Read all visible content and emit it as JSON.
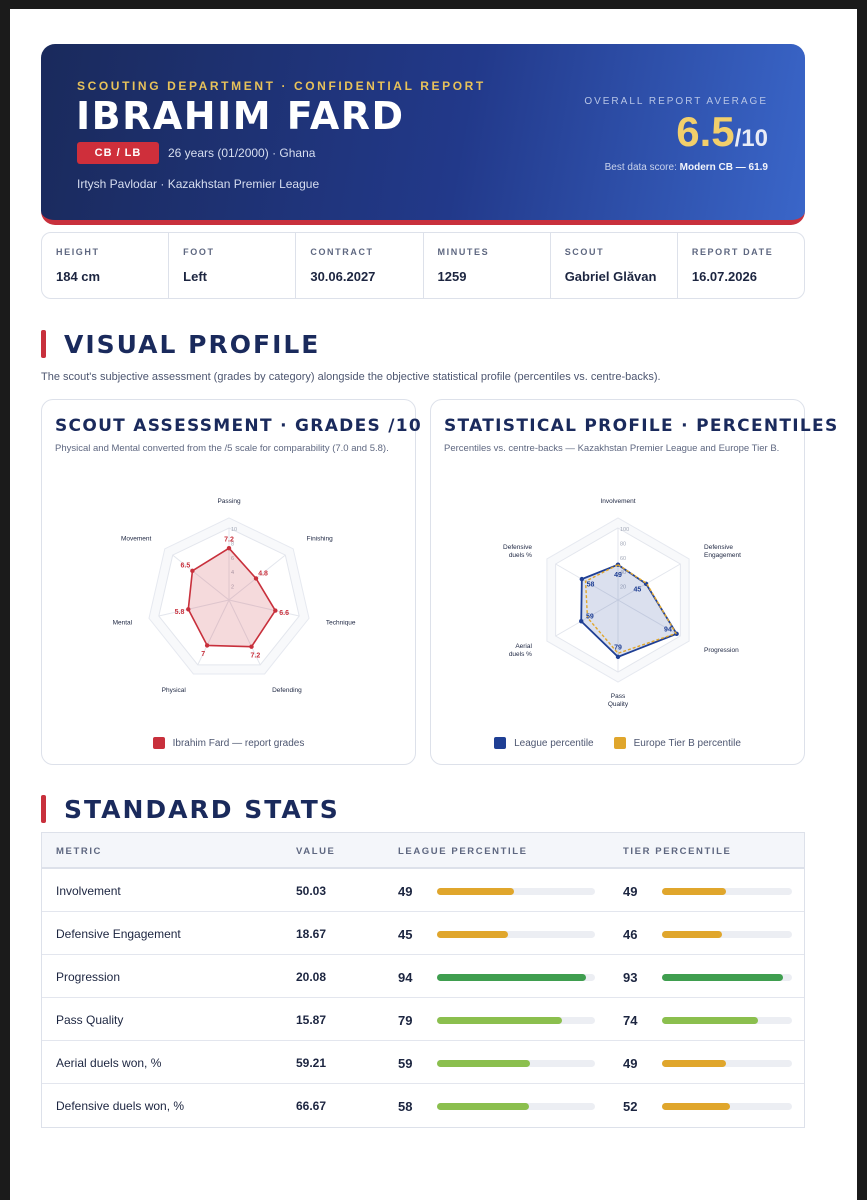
{
  "header": {
    "department": "SCOUTING DEPARTMENT · CONFIDENTIAL REPORT",
    "player_name": "IBRAHIM FARD",
    "position_badge": "CB / LB",
    "age_line": "26 years (01/2000) · Ghana",
    "club_line": "Irtysh Pavlodar · Kazakhstan Premier League",
    "overall_label": "OVERALL REPORT AVERAGE",
    "overall_score": "6.5",
    "overall_denominator": "/10",
    "best_label": "Best data score:",
    "best_value": "Modern CB — 61.9",
    "accent_color": "#c8303c",
    "gold_color": "#f2cf6b"
  },
  "info": [
    {
      "label": "HEIGHT",
      "value": "184 cm"
    },
    {
      "label": "FOOT",
      "value": "Left"
    },
    {
      "label": "CONTRACT",
      "value": "30.06.2027"
    },
    {
      "label": "MINUTES",
      "value": "1259"
    },
    {
      "label": "SCOUT",
      "value": "Gabriel Glăvan"
    },
    {
      "label": "REPORT DATE",
      "value": "16.07.2026"
    }
  ],
  "visual_profile": {
    "title": "VISUAL PROFILE",
    "intro": "The scout's subjective assessment (grades by category) alongside the objective statistical profile (percentiles vs. centre-backs)."
  },
  "assessment": {
    "title": "SCOUT ASSESSMENT · GRADES /10",
    "subtitle": "Physical and Mental converted from the /5 scale for comparability (7.0 and 5.8).",
    "legend": "Ibrahim Fard — report grades"
  },
  "statistical": {
    "title": "STATISTICAL PROFILE · PERCENTILES",
    "subtitle": "Percentiles vs. centre-backs — Kazakhstan Premier League and Europe Tier B.",
    "legend_league": "League percentile",
    "legend_tier": "Europe Tier B percentile"
  },
  "chart_data": [
    {
      "type": "radar",
      "axes": [
        "Passing",
        "Finishing",
        "Technique",
        "Defending",
        "Physical",
        "Mental",
        "Movement"
      ],
      "range": [
        0,
        10
      ],
      "ticks": [
        "2",
        "4",
        "6",
        "8",
        "10"
      ],
      "series": [
        {
          "name": "Ibrahim Fard — report grades",
          "color": "#c8303c",
          "values": [
            7.2,
            4.8,
            6.6,
            7.2,
            7,
            5.8,
            6.5
          ],
          "labels": [
            "7.2",
            "4.8",
            "6.6",
            "7.2",
            "7",
            "5.8",
            "6.5"
          ]
        }
      ]
    },
    {
      "type": "radar",
      "axes": [
        "Involvement",
        "Defensive Engagement",
        "Progression",
        "Pass Quality",
        "Aerial duels %",
        "Defensive duels %"
      ],
      "range": [
        0,
        100
      ],
      "ticks": [
        "20",
        "40",
        "60",
        "80",
        "100"
      ],
      "series": [
        {
          "name": "League percentile",
          "color": "#1f3f94",
          "values": [
            49,
            45,
            94,
            79,
            59,
            58
          ],
          "labels": [
            "49",
            "45",
            "94",
            "79",
            "59",
            "58"
          ]
        },
        {
          "name": "Europe Tier B percentile",
          "color": "#e0a62c",
          "values": [
            49,
            46,
            93,
            74,
            49,
            52
          ]
        }
      ]
    }
  ],
  "standard_stats": {
    "title": "STANDARD STATS",
    "columns": [
      "METRIC",
      "VALUE",
      "LEAGUE PERCENTILE",
      "TIER PERCENTILE"
    ],
    "rows": [
      {
        "metric": "Involvement",
        "value": "50.03",
        "league": "49",
        "tier": "49"
      },
      {
        "metric": "Defensive Engagement",
        "value": "18.67",
        "league": "45",
        "tier": "46"
      },
      {
        "metric": "Progression",
        "value": "20.08",
        "league": "94",
        "tier": "93"
      },
      {
        "metric": "Pass Quality",
        "value": "15.87",
        "league": "79",
        "tier": "74"
      },
      {
        "metric": "Aerial duels won, %",
        "value": "59.21",
        "league": "59",
        "tier": "49"
      },
      {
        "metric": "Defensive duels won, %",
        "value": "66.67",
        "league": "58",
        "tier": "52"
      }
    ],
    "bar_colors": {
      "low": "#e0a62c",
      "mid": "#8bbf4e",
      "high": "#3f9e4f"
    }
  }
}
